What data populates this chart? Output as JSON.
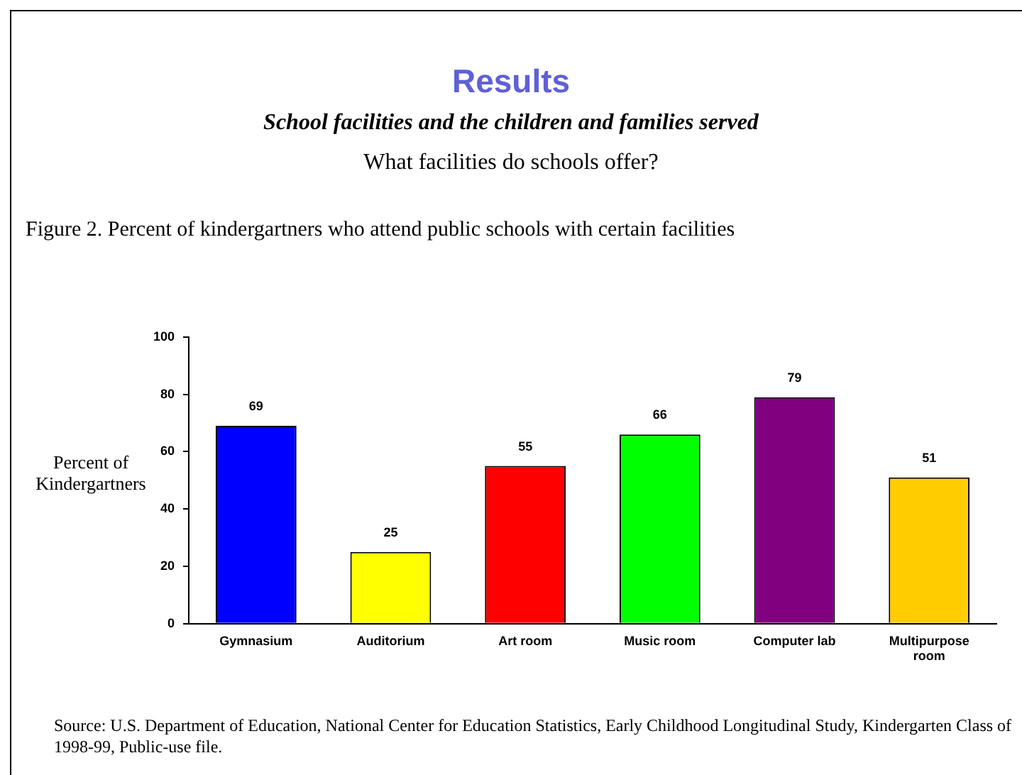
{
  "chart_data": {
    "type": "bar",
    "title": "Results",
    "subtitle": "School facilities and the children and families served",
    "ylabel": "Percent of Kindergartners",
    "annotations": [
      "What facilities do schools offer?",
      "Figure 2. Percent of kindergartners who attend public schools with certain facilities",
      "Source: U.S. Department of Education, National Center for Education Statistics, Early Childhood Longitudinal Study, Kindergarten Class of 1998-99, Public-use file."
    ],
    "categories": [
      "Gymnasium",
      "Auditorium",
      "Art room",
      "Music room",
      "Computer lab",
      "Multipurpose room"
    ],
    "values": [
      69,
      25,
      55,
      66,
      79,
      51
    ],
    "colors": [
      "#0000ff",
      "#ffff00",
      "#ff0000",
      "#00ff00",
      "#800080",
      "#ffcc00"
    ],
    "ylim": [
      0,
      100
    ],
    "yticks": [
      0,
      20,
      40,
      60,
      80,
      100
    ],
    "grid": false,
    "legend": false,
    "data_labels": true
  }
}
